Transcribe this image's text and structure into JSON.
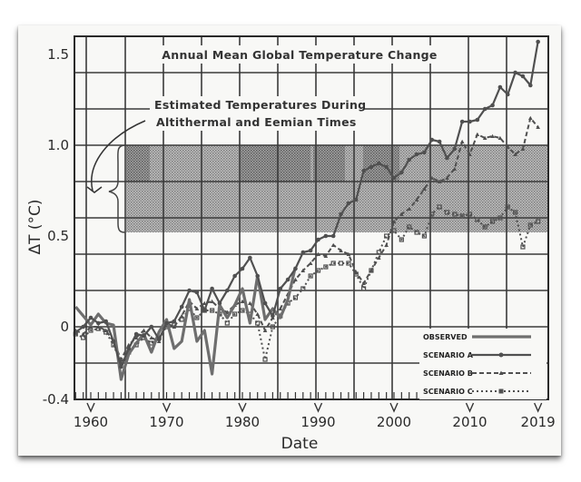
{
  "chart_data": {
    "type": "line",
    "title": "Annual Mean Global Temperature Change",
    "annotation": "Estimated Temperatures During Altithermal and Eemian Times",
    "annotation_lines": [
      "Estimated Temperatures During",
      "Altithermal and Eemian Times"
    ],
    "shaded_band": {
      "y_from": 0.52,
      "y_to": 1.0,
      "label": "Estimated Temperatures During Altithermal and Eemian Times"
    },
    "xlabel": "Date",
    "ylabel": "ΔT (°C)",
    "xlim": [
      1958,
      2020
    ],
    "ylim": [
      -0.4,
      1.6
    ],
    "x_ticks": [
      "1960",
      "1970",
      "1980",
      "1990",
      "2000",
      "2010",
      "2019"
    ],
    "x_tick_values": [
      1960,
      1970,
      1980,
      1990,
      2000,
      2010,
      2019
    ],
    "y_ticks": [
      "1.5",
      "1.0",
      "0.5",
      "0",
      "-0.4"
    ],
    "y_tick_values": [
      1.5,
      1.0,
      0.5,
      0,
      -0.4
    ],
    "grid": true,
    "legend_position": "bottom-right",
    "legend": [
      "OBSERVED",
      "SCENARIO A",
      "SCENARIO B",
      "SCENARIO C"
    ],
    "series": [
      {
        "name": "OBSERVED",
        "style": "solid-thick",
        "x": [
          1958,
          1959,
          1960,
          1961,
          1962,
          1963,
          1964,
          1965,
          1966,
          1967,
          1968,
          1969,
          1970,
          1971,
          1972,
          1973,
          1974,
          1975,
          1976,
          1977,
          1978,
          1979,
          1980,
          1981,
          1982,
          1983,
          1984,
          1985,
          1986,
          1987
        ],
        "values": [
          0.11,
          0.06,
          0.01,
          0.07,
          0.02,
          0.01,
          -0.29,
          -0.15,
          -0.09,
          -0.04,
          -0.14,
          -0.03,
          0.04,
          -0.12,
          -0.08,
          0.15,
          -0.08,
          -0.02,
          -0.26,
          0.12,
          0.05,
          0.12,
          0.21,
          0.02,
          0.28,
          0.04,
          0.1,
          0.05,
          0.15,
          0.33
        ]
      },
      {
        "name": "SCENARIO A",
        "style": "solid-circles",
        "x": [
          1958,
          1959,
          1960,
          1961,
          1962,
          1963,
          1964,
          1965,
          1966,
          1967,
          1968,
          1969,
          1970,
          1971,
          1972,
          1973,
          1974,
          1975,
          1976,
          1977,
          1978,
          1979,
          1980,
          1981,
          1982,
          1983,
          1984,
          1985,
          1986,
          1987,
          1988,
          1989,
          1990,
          1991,
          1992,
          1993,
          1994,
          1995,
          1996,
          1997,
          1998,
          1999,
          2000,
          2001,
          2002,
          2003,
          2004,
          2005,
          2006,
          2007,
          2008,
          2009,
          2010,
          2011,
          2012,
          2013,
          2014,
          2015,
          2016,
          2017,
          2018,
          2019
        ],
        "values": [
          -0.03,
          0.0,
          0.05,
          0.02,
          0.03,
          -0.08,
          -0.22,
          -0.12,
          -0.04,
          -0.05,
          0.0,
          -0.07,
          0.02,
          0.03,
          0.11,
          0.2,
          0.19,
          0.09,
          0.21,
          0.13,
          0.2,
          0.28,
          0.32,
          0.38,
          0.28,
          0.13,
          0.06,
          0.21,
          0.26,
          0.32,
          0.41,
          0.42,
          0.48,
          0.5,
          0.5,
          0.62,
          0.68,
          0.7,
          0.86,
          0.88,
          0.9,
          0.88,
          0.82,
          0.85,
          0.92,
          0.95,
          0.96,
          1.03,
          1.02,
          0.93,
          0.98,
          1.13,
          1.13,
          1.14,
          1.2,
          1.22,
          1.32,
          1.28,
          1.4,
          1.38,
          1.33,
          1.57
        ]
      },
      {
        "name": "SCENARIO B",
        "style": "dashed-triangles",
        "x": [
          1958,
          1959,
          1960,
          1961,
          1962,
          1963,
          1964,
          1965,
          1966,
          1967,
          1968,
          1969,
          1970,
          1971,
          1972,
          1973,
          1974,
          1975,
          1976,
          1977,
          1978,
          1979,
          1980,
          1981,
          1982,
          1983,
          1984,
          1985,
          1986,
          1987,
          1988,
          1989,
          1990,
          1991,
          1992,
          1993,
          1994,
          1995,
          1996,
          1997,
          1998,
          1999,
          2000,
          2001,
          2002,
          2003,
          2004,
          2005,
          2006,
          2007,
          2008,
          2009,
          2010,
          2011,
          2012,
          2013,
          2014,
          2015,
          2016,
          2017,
          2018,
          2019
        ],
        "values": [
          -0.02,
          -0.04,
          0.0,
          0.0,
          -0.02,
          -0.08,
          -0.18,
          -0.1,
          -0.06,
          -0.02,
          -0.06,
          -0.08,
          0.02,
          0.0,
          0.06,
          0.14,
          0.1,
          0.13,
          0.14,
          0.1,
          0.08,
          0.12,
          0.14,
          0.13,
          0.07,
          -0.02,
          0.05,
          0.1,
          0.18,
          0.26,
          0.31,
          0.35,
          0.4,
          0.39,
          0.45,
          0.42,
          0.4,
          0.3,
          0.24,
          0.31,
          0.38,
          0.45,
          0.58,
          0.62,
          0.65,
          0.7,
          0.76,
          0.82,
          0.8,
          0.82,
          0.87,
          1.02,
          0.95,
          1.06,
          1.04,
          1.05,
          1.04,
          0.99,
          0.95,
          0.98,
          1.15,
          1.1
        ]
      },
      {
        "name": "SCENARIO C",
        "style": "dotted-squares",
        "x": [
          1958,
          1959,
          1960,
          1961,
          1962,
          1963,
          1964,
          1965,
          1966,
          1967,
          1968,
          1969,
          1970,
          1971,
          1972,
          1973,
          1974,
          1975,
          1976,
          1977,
          1978,
          1979,
          1980,
          1981,
          1982,
          1983,
          1984,
          1985,
          1986,
          1987,
          1988,
          1989,
          1990,
          1991,
          1992,
          1993,
          1994,
          1995,
          1996,
          1997,
          1998,
          1999,
          2000,
          2001,
          2002,
          2003,
          2004,
          2005,
          2006,
          2007,
          2008,
          2009,
          2010,
          2011,
          2012,
          2013,
          2014,
          2015,
          2016,
          2017,
          2018,
          2019
        ],
        "values": [
          -0.04,
          -0.06,
          -0.02,
          -0.01,
          -0.03,
          -0.1,
          -0.2,
          -0.14,
          -0.1,
          -0.06,
          -0.09,
          -0.06,
          0.0,
          0.01,
          0.04,
          0.1,
          0.05,
          0.09,
          0.09,
          0.07,
          0.02,
          0.07,
          0.09,
          0.07,
          0.02,
          -0.18,
          0.0,
          0.06,
          0.13,
          0.16,
          0.21,
          0.28,
          0.31,
          0.33,
          0.35,
          0.35,
          0.35,
          0.29,
          0.21,
          0.31,
          0.41,
          0.5,
          0.53,
          0.48,
          0.55,
          0.52,
          0.5,
          0.62,
          0.66,
          0.63,
          0.62,
          0.61,
          0.62,
          0.59,
          0.55,
          0.58,
          0.6,
          0.66,
          0.63,
          0.44,
          0.56,
          0.58
        ]
      }
    ]
  },
  "colors": {
    "grid": "#3a3a3a",
    "observed": "#6e6e6e",
    "scenario": "#505050",
    "shading": "#8c8c8c",
    "shading_dark": "#5e5e5e"
  }
}
